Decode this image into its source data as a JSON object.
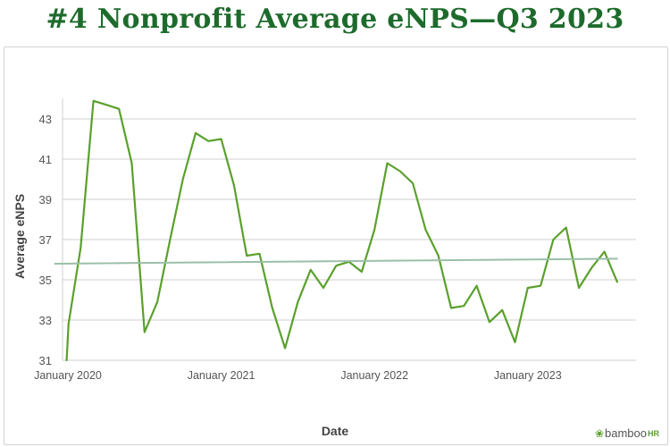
{
  "header": {
    "title": "#4 Nonprofit Average eNPS—Q3 2023"
  },
  "footer": {
    "brand": "bamboo",
    "brand_suffix": "HR",
    "brand_icon": "leaf-icon"
  },
  "colors": {
    "title": "#1d6b2c",
    "line": "#5aa02c",
    "trend": "#9bbfa8",
    "grid": "#cfcfcf"
  },
  "chart_data": {
    "type": "line",
    "title": "#4 Nonprofit Average eNPS—Q3 2023",
    "xlabel": "Date",
    "ylabel": "Average eNPS",
    "ylim": [
      31,
      44
    ],
    "y_ticks": [
      31,
      33,
      35,
      37,
      39,
      41,
      43
    ],
    "x_ticks": [
      {
        "label": "January 2020",
        "value": 0
      },
      {
        "label": "January 2021",
        "value": 12
      },
      {
        "label": "January 2022",
        "value": 24
      },
      {
        "label": "January 2023",
        "value": 36
      }
    ],
    "x_unit": "months since January 2020",
    "grid": true,
    "series": [
      {
        "kind": "monthly",
        "color": "#5aa02c",
        "points": [
          [
            -0.1,
            31.0
          ],
          [
            0.05,
            32.8
          ],
          [
            1,
            36.6
          ],
          [
            2,
            43.9
          ],
          [
            3,
            43.7
          ],
          [
            4,
            43.5
          ],
          [
            5,
            40.8
          ],
          [
            6,
            32.4
          ],
          [
            7,
            33.9
          ],
          [
            8,
            37.0
          ],
          [
            9,
            40.0
          ],
          [
            10,
            42.3
          ],
          [
            11,
            41.9
          ],
          [
            12,
            42.0
          ],
          [
            13,
            39.7
          ],
          [
            14,
            36.2
          ],
          [
            15,
            36.3
          ],
          [
            16,
            33.6
          ],
          [
            17,
            31.6
          ],
          [
            18,
            33.9
          ],
          [
            19,
            35.5
          ],
          [
            20,
            34.6
          ],
          [
            21,
            35.7
          ],
          [
            22,
            35.9
          ],
          [
            23,
            35.4
          ],
          [
            24,
            37.5
          ],
          [
            25,
            40.8
          ],
          [
            26,
            40.4
          ],
          [
            27,
            39.8
          ],
          [
            28,
            37.5
          ],
          [
            29,
            36.2
          ],
          [
            30,
            33.6
          ],
          [
            31,
            33.7
          ],
          [
            32,
            34.7
          ],
          [
            33,
            32.9
          ],
          [
            34,
            33.5
          ],
          [
            35,
            31.9
          ],
          [
            36,
            34.6
          ],
          [
            37,
            34.7
          ],
          [
            38,
            37.0
          ],
          [
            39,
            37.6
          ],
          [
            40,
            34.6
          ],
          [
            41,
            35.6
          ],
          [
            42,
            36.4
          ],
          [
            43,
            34.9
          ]
        ]
      },
      {
        "kind": "trend",
        "color": "#9bbfa8",
        "points": [
          [
            -1,
            35.8
          ],
          [
            43,
            36.05
          ]
        ]
      }
    ]
  }
}
